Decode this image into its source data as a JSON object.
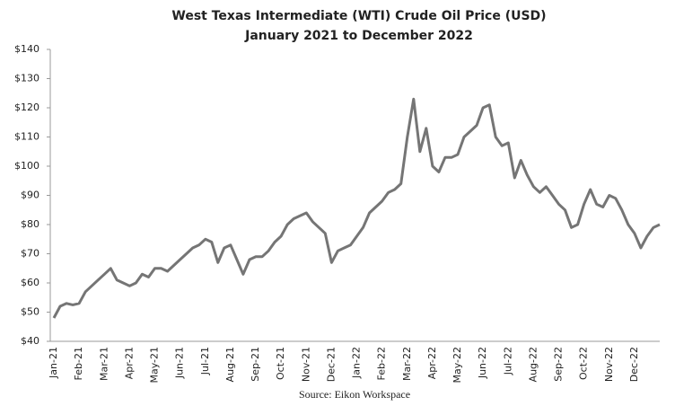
{
  "chart_data": {
    "type": "line",
    "title": "West Texas Intermediate (WTI) Crude Oil Price (USD)",
    "subtitle": "January 2021 to December 2022",
    "source": "Source: Eikon Workspace",
    "categories": [
      "Jan-21",
      null,
      null,
      null,
      "Feb-21",
      null,
      null,
      null,
      "Mar-21",
      null,
      null,
      null,
      "Apr-21",
      null,
      null,
      null,
      "May-21",
      null,
      null,
      null,
      "Jun-21",
      null,
      null,
      null,
      "Jul-21",
      null,
      null,
      null,
      "Aug-21",
      null,
      null,
      null,
      "Sep-21",
      null,
      null,
      null,
      "Oct-21",
      null,
      null,
      null,
      "Nov-21",
      null,
      null,
      null,
      "Dec-21",
      null,
      null,
      null,
      "Jan-22",
      null,
      null,
      null,
      "Feb-22",
      null,
      null,
      null,
      "Mar-22",
      null,
      null,
      null,
      "Apr-22",
      null,
      null,
      null,
      "May-22",
      null,
      null,
      null,
      "Jun-22",
      null,
      null,
      null,
      "Jul-22",
      null,
      null,
      null,
      "Aug-22",
      null,
      null,
      null,
      "Sep-22",
      null,
      null,
      null,
      "Oct-22",
      null,
      null,
      null,
      "Nov-22",
      null,
      null,
      null,
      "Dec-22",
      null,
      null,
      null,
      null
    ],
    "series": [
      {
        "name": "WTI",
        "color": "#757575",
        "values": [
          48,
          52,
          53,
          52.5,
          53,
          57,
          59,
          61,
          63,
          65,
          61,
          60,
          59,
          60,
          63,
          62,
          65,
          65,
          64,
          66,
          68,
          70,
          72,
          73,
          75,
          74,
          67,
          72,
          73,
          68,
          63,
          68,
          69,
          69,
          71,
          74,
          76,
          80,
          82,
          83,
          84,
          81,
          79,
          77,
          67,
          71,
          72,
          73,
          76,
          79,
          84,
          86,
          88,
          91,
          92,
          94,
          110,
          123,
          105,
          113,
          100,
          98,
          103,
          103,
          104,
          110,
          112,
          114,
          120,
          121,
          110,
          107,
          108,
          96,
          102,
          97,
          93,
          91,
          93,
          90,
          87,
          85,
          79,
          80,
          87,
          92,
          87,
          86,
          90,
          89,
          85,
          80,
          77,
          72,
          76,
          79,
          80
        ]
      }
    ],
    "ylim": [
      40,
      140
    ],
    "yticks": [
      {
        "value": 40,
        "label": "$40"
      },
      {
        "value": 50,
        "label": "$50"
      },
      {
        "value": 60,
        "label": "$60"
      },
      {
        "value": 70,
        "label": "$70"
      },
      {
        "value": 80,
        "label": "$80"
      },
      {
        "value": 90,
        "label": "$90"
      },
      {
        "value": 100,
        "label": "$100"
      },
      {
        "value": 110,
        "label": "$110"
      },
      {
        "value": 120,
        "label": "$120"
      },
      {
        "value": 130,
        "label": "$130"
      },
      {
        "value": 140,
        "label": "$140"
      }
    ],
    "grid": false
  }
}
